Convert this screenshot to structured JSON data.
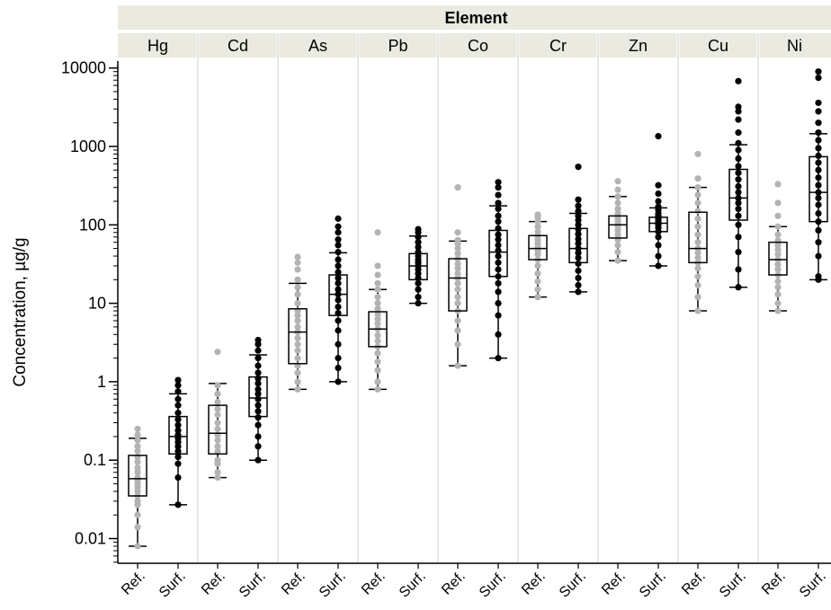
{
  "chart_data": {
    "type": "box",
    "facet_title": "Element",
    "ylabel": "Concentration, µg/g",
    "y_scale": "log",
    "ylim": [
      0.005,
      15000
    ],
    "y_ticks": [
      {
        "value": 0.01,
        "label": "0.01"
      },
      {
        "value": 0.1,
        "label": "0.1"
      },
      {
        "value": 1,
        "label": "1"
      },
      {
        "value": 10,
        "label": "10"
      },
      {
        "value": 100,
        "label": "100"
      },
      {
        "value": 1000,
        "label": "1000"
      },
      {
        "value": 10000,
        "label": "10000"
      }
    ],
    "categories": [
      "Ref.",
      "Surf."
    ],
    "colors": {
      "Ref.": "#b3b3b3",
      "Surf.": "#000000",
      "strip": "#eaeae0",
      "divider": "#d9d9d9"
    },
    "grid": false,
    "elements": [
      {
        "name": "Hg",
        "boxes": [
          {
            "group": "Ref.",
            "whisker_low": 0.008,
            "q1": 0.035,
            "median": 0.058,
            "q3": 0.115,
            "whisker_high": 0.19,
            "points": [
              0.008,
              0.014,
              0.02,
              0.027,
              0.03,
              0.035,
              0.04,
              0.045,
              0.05,
              0.055,
              0.06,
              0.07,
              0.08,
              0.095,
              0.11,
              0.13,
              0.15,
              0.18,
              0.21,
              0.25
            ]
          },
          {
            "group": "Surf.",
            "whisker_low": 0.027,
            "q1": 0.12,
            "median": 0.2,
            "q3": 0.36,
            "whisker_high": 0.7,
            "points": [
              0.027,
              0.06,
              0.09,
              0.11,
              0.13,
              0.15,
              0.17,
              0.19,
              0.21,
              0.24,
              0.28,
              0.33,
              0.4,
              0.5,
              0.6,
              0.75,
              0.9,
              1.05
            ]
          }
        ]
      },
      {
        "name": "Cd",
        "boxes": [
          {
            "group": "Ref.",
            "whisker_low": 0.06,
            "q1": 0.12,
            "median": 0.22,
            "q3": 0.5,
            "whisker_high": 0.95,
            "points": [
              0.06,
              0.07,
              0.09,
              0.1,
              0.13,
              0.15,
              0.18,
              0.21,
              0.25,
              0.3,
              0.38,
              0.45,
              0.55,
              0.7,
              0.9,
              2.4
            ]
          },
          {
            "group": "Surf.",
            "whisker_low": 0.1,
            "q1": 0.36,
            "median": 0.62,
            "q3": 1.15,
            "whisker_high": 2.2,
            "points": [
              0.1,
              0.15,
              0.2,
              0.28,
              0.35,
              0.42,
              0.5,
              0.6,
              0.7,
              0.8,
              0.95,
              1.1,
              1.3,
              1.6,
              2.0,
              2.5,
              3.0,
              3.4
            ]
          }
        ]
      },
      {
        "name": "As",
        "boxes": [
          {
            "group": "Ref.",
            "whisker_low": 0.8,
            "q1": 1.7,
            "median": 4.3,
            "q3": 8.5,
            "whisker_high": 18,
            "points": [
              0.8,
              1.0,
              1.3,
              1.6,
              2.0,
              2.5,
              3.0,
              3.6,
              4.3,
              5.0,
              6.0,
              7.0,
              8.0,
              10,
              13,
              16,
              20,
              27,
              33,
              39
            ]
          },
          {
            "group": "Surf.",
            "whisker_low": 1.0,
            "q1": 7.0,
            "median": 13,
            "q3": 23,
            "whisker_high": 44,
            "points": [
              1.0,
              1.5,
              2.0,
              3.0,
              4.5,
              6.0,
              7.5,
              9.0,
              11,
              13,
              15,
              18,
              21,
              25,
              30,
              36,
              45,
              55,
              65,
              80,
              95,
              120
            ]
          }
        ]
      },
      {
        "name": "Pb",
        "boxes": [
          {
            "group": "Ref.",
            "whisker_low": 0.8,
            "q1": 2.8,
            "median": 4.7,
            "q3": 7.8,
            "whisker_high": 15,
            "points": [
              0.8,
              1.0,
              1.4,
              1.8,
              2.3,
              2.8,
              3.3,
              3.9,
              4.7,
              5.5,
              6.3,
              7.2,
              8.5,
              10,
              12,
              15,
              18,
              23,
              30,
              80
            ]
          },
          {
            "group": "Surf.",
            "whisker_low": 10,
            "q1": 20,
            "median": 30,
            "q3": 43,
            "whisker_high": 72,
            "points": [
              10,
              12,
              15,
              18,
              21,
              24,
              27,
              30,
              33,
              36,
              40,
              45,
              52,
              60,
              70,
              80,
              88
            ]
          }
        ]
      },
      {
        "name": "Co",
        "boxes": [
          {
            "group": "Ref.",
            "whisker_low": 1.6,
            "q1": 8.0,
            "median": 21,
            "q3": 37,
            "whisker_high": 62,
            "points": [
              1.6,
              3.0,
              4.5,
              6.0,
              8.0,
              10,
              12,
              15,
              18,
              21,
              24,
              28,
              32,
              37,
              43,
              50,
              57,
              64,
              80,
              300
            ]
          },
          {
            "group": "Surf.",
            "whisker_low": 2.0,
            "q1": 22,
            "median": 45,
            "q3": 85,
            "whisker_high": 175,
            "points": [
              2.0,
              4.0,
              7.0,
              10,
              14,
              18,
              22,
              27,
              33,
              40,
              47,
              55,
              65,
              75,
              90,
              110,
              130,
              160,
              190,
              240,
              300,
              350
            ]
          }
        ]
      },
      {
        "name": "Cr",
        "boxes": [
          {
            "group": "Ref.",
            "whisker_low": 12,
            "q1": 36,
            "median": 50,
            "q3": 73,
            "whisker_high": 110,
            "points": [
              12,
              15,
              19,
              24,
              30,
              36,
              42,
              47,
              52,
              58,
              64,
              72,
              82,
              95,
              110,
              125,
              135
            ]
          },
          {
            "group": "Surf.",
            "whisker_low": 14,
            "q1": 33,
            "median": 50,
            "q3": 90,
            "whisker_high": 140,
            "points": [
              14,
              17,
              21,
              26,
              32,
              38,
              44,
              50,
              58,
              66,
              76,
              88,
              100,
              115,
              130,
              150,
              175,
              210,
              550
            ]
          }
        ]
      },
      {
        "name": "Zn",
        "boxes": [
          {
            "group": "Ref.",
            "whisker_low": 35,
            "q1": 68,
            "median": 100,
            "q3": 130,
            "whisker_high": 230,
            "points": [
              35,
              45,
              55,
              65,
              75,
              85,
              95,
              105,
              115,
              125,
              140,
              160,
              190,
              230,
              280,
              360
            ]
          },
          {
            "group": "Surf.",
            "whisker_low": 30,
            "q1": 82,
            "median": 105,
            "q3": 125,
            "whisker_high": 165,
            "points": [
              30,
              40,
              55,
              70,
              82,
              92,
              100,
              108,
              115,
              122,
              130,
              140,
              155,
              170,
              200,
              250,
              320,
              1350
            ]
          }
        ]
      },
      {
        "name": "Cu",
        "boxes": [
          {
            "group": "Ref.",
            "whisker_low": 8,
            "q1": 33,
            "median": 50,
            "q3": 145,
            "whisker_high": 300,
            "points": [
              8,
              12,
              17,
              22,
              28,
              33,
              38,
              44,
              50,
              60,
              75,
              95,
              120,
              150,
              190,
              240,
              300,
              390,
              800
            ]
          },
          {
            "group": "Surf.",
            "whisker_low": 16,
            "q1": 115,
            "median": 220,
            "q3": 510,
            "whisker_high": 1050,
            "points": [
              16,
              27,
              45,
              70,
              100,
              130,
              160,
              190,
              220,
              260,
              310,
              380,
              460,
              560,
              700,
              900,
              1100,
              1500,
              2200,
              2800,
              3200,
              6800
            ]
          }
        ]
      },
      {
        "name": "Ni",
        "boxes": [
          {
            "group": "Ref.",
            "whisker_low": 8,
            "q1": 23,
            "median": 36,
            "q3": 60,
            "whisker_high": 95,
            "points": [
              8,
              10,
              13,
              16,
              19,
              23,
              27,
              31,
              36,
              42,
              48,
              55,
              63,
              75,
              95,
              130,
              190,
              330
            ]
          },
          {
            "group": "Surf.",
            "whisker_low": 20,
            "q1": 110,
            "median": 260,
            "q3": 740,
            "whisker_high": 1450,
            "points": [
              20,
              22,
              40,
              60,
              85,
              110,
              140,
              180,
              220,
              260,
              320,
              400,
              500,
              620,
              760,
              950,
              1200,
              1500,
              2000,
              2800,
              3600,
              7500,
              9000
            ]
          }
        ]
      }
    ]
  }
}
